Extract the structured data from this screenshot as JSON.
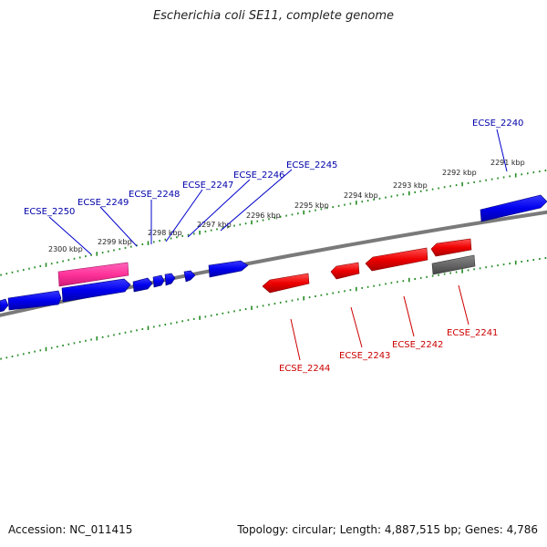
{
  "title": "Escherichia coli SE11, complete genome",
  "footer": {
    "accession": "Accession: NC_011415",
    "summary": "Topology: circular; Length: 4,887,515 bp; Genes: 4,786"
  },
  "colors": {
    "forward_gene": "#0000ff",
    "reverse_gene": "#ff0000",
    "rna_gene": "#ff3399",
    "pseudo_gene": "#666666",
    "backbone": "#888888",
    "ticks": "#228b22",
    "forward_label": "#0000aa",
    "reverse_label": "#cc0000"
  },
  "scale": {
    "unit": "kbp",
    "ticks": [
      {
        "kbp": 2291,
        "label": "2291 kbp"
      },
      {
        "kbp": 2292,
        "label": "2292 kbp"
      },
      {
        "kbp": 2293,
        "label": "2293 kbp"
      },
      {
        "kbp": 2294,
        "label": "2294 kbp"
      },
      {
        "kbp": 2295,
        "label": "2295 kbp"
      },
      {
        "kbp": 2296,
        "label": "2296 kbp"
      },
      {
        "kbp": 2297,
        "label": "2297 kbp"
      },
      {
        "kbp": 2298,
        "label": "2298 kbp"
      },
      {
        "kbp": 2299,
        "label": "2299 kbp"
      },
      {
        "kbp": 2300,
        "label": "2300 kbp"
      }
    ]
  },
  "genes_forward_labeled": [
    {
      "label": "ECSE_2240"
    },
    {
      "label": "ECSE_2245"
    },
    {
      "label": "ECSE_2246"
    },
    {
      "label": "ECSE_2247"
    },
    {
      "label": "ECSE_2248"
    },
    {
      "label": "ECSE_2249"
    },
    {
      "label": "ECSE_2250"
    }
  ],
  "genes_reverse_labeled": [
    {
      "label": "ECSE_2241"
    },
    {
      "label": "ECSE_2242"
    },
    {
      "label": "ECSE_2243"
    },
    {
      "label": "ECSE_2244"
    }
  ]
}
